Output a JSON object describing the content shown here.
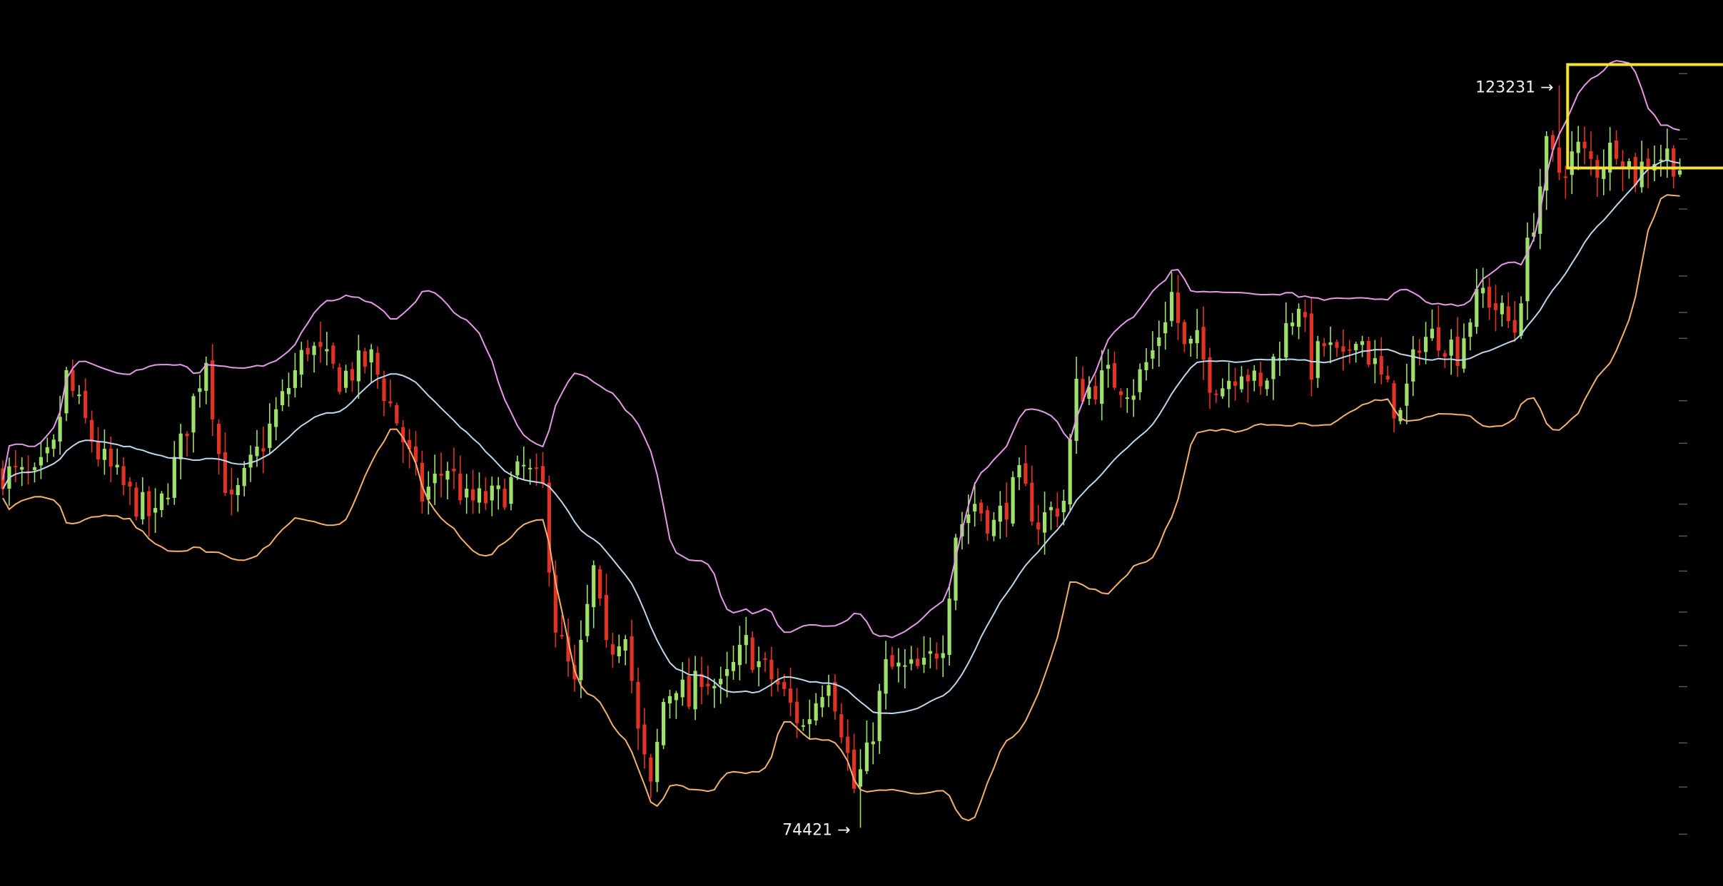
{
  "chart_data": {
    "type": "candlestick",
    "title": "",
    "xlabel": "",
    "ylabel": "",
    "ylim": [
      72000,
      128000
    ],
    "bar_count": 265,
    "grid": false,
    "legend": "none",
    "colors": {
      "background": "#000000",
      "up_candle": "#9ee06b",
      "down_candle": "#e03326",
      "upper_band": "#e59ae8",
      "middle_band": "#bcd8ec",
      "lower_band": "#f4b26e",
      "highlight_box": "#f2e23a",
      "text": "#f2f2f2",
      "axis_ticks": "#555555"
    },
    "annotations": [
      {
        "text": "123231 →",
        "bar": 245,
        "value": 123231
      },
      {
        "text": "74421 →",
        "bar": 135,
        "value": 74421
      }
    ],
    "highlight": {
      "from_bar": 247,
      "to_bar": 271,
      "low": 117800,
      "high": 124600
    },
    "y_ticks": [
      74000,
      77100,
      80000,
      83700,
      86400,
      88600,
      91300,
      93600,
      95700,
      99700,
      102500,
      106600,
      108300,
      110700,
      115100,
      119700,
      124000
    ],
    "price_anchors": [
      [
        0,
        97800
      ],
      [
        5,
        97200
      ],
      [
        8,
        99200
      ],
      [
        10,
        104000
      ],
      [
        15,
        99000
      ],
      [
        20,
        96200
      ],
      [
        24,
        94600
      ],
      [
        28,
        99500
      ],
      [
        32,
        105500
      ],
      [
        34,
        99000
      ],
      [
        36,
        95500
      ],
      [
        42,
        100700
      ],
      [
        48,
        106200
      ],
      [
        53,
        104000
      ],
      [
        58,
        105200
      ],
      [
        62,
        101200
      ],
      [
        66,
        96200
      ],
      [
        70,
        98200
      ],
      [
        73,
        95800
      ],
      [
        78,
        96100
      ],
      [
        82,
        98000
      ],
      [
        85,
        96600
      ],
      [
        87,
        87800
      ],
      [
        90,
        83500
      ],
      [
        93,
        91200
      ],
      [
        95,
        85800
      ],
      [
        98,
        87800
      ],
      [
        100,
        80500
      ],
      [
        102,
        76800
      ],
      [
        104,
        82700
      ],
      [
        106,
        84100
      ],
      [
        108,
        82600
      ],
      [
        110,
        84700
      ],
      [
        113,
        83400
      ],
      [
        117,
        86400
      ],
      [
        119,
        85200
      ],
      [
        122,
        83800
      ],
      [
        126,
        81000
      ],
      [
        130,
        84700
      ],
      [
        132,
        81200
      ],
      [
        134,
        77000
      ],
      [
        136,
        79000
      ],
      [
        139,
        84900
      ],
      [
        142,
        84700
      ],
      [
        145,
        84800
      ],
      [
        148,
        86900
      ],
      [
        150,
        93900
      ],
      [
        153,
        95800
      ],
      [
        156,
        94300
      ],
      [
        160,
        97200
      ],
      [
        163,
        94500
      ],
      [
        167,
        96000
      ],
      [
        169,
        103200
      ],
      [
        171,
        103300
      ],
      [
        174,
        104000
      ],
      [
        178,
        103400
      ],
      [
        181,
        105700
      ],
      [
        184,
        109500
      ],
      [
        186,
        105800
      ],
      [
        188,
        106200
      ],
      [
        190,
        104000
      ],
      [
        192,
        103600
      ],
      [
        195,
        104900
      ],
      [
        198,
        103000
      ],
      [
        201,
        106200
      ],
      [
        204,
        109200
      ],
      [
        206,
        104700
      ],
      [
        208,
        106200
      ],
      [
        211,
        104700
      ],
      [
        213,
        107300
      ],
      [
        216,
        104700
      ],
      [
        218,
        103000
      ],
      [
        220,
        101500
      ],
      [
        223,
        106600
      ],
      [
        226,
        106800
      ],
      [
        229,
        105800
      ],
      [
        231,
        108100
      ],
      [
        233,
        109700
      ],
      [
        236,
        108100
      ],
      [
        238,
        107200
      ],
      [
        240,
        112300
      ],
      [
        243,
        118900
      ],
      [
        245,
        117600
      ],
      [
        248,
        119000
      ],
      [
        251,
        117800
      ],
      [
        254,
        119500
      ],
      [
        257,
        117300
      ],
      [
        259,
        118500
      ],
      [
        262,
        118700
      ],
      [
        265,
        117600
      ]
    ]
  }
}
